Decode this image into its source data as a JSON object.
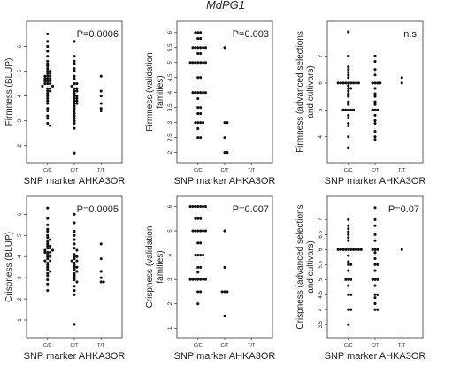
{
  "figure_title": "MdPG1",
  "chart_data": [
    {
      "type": "scatter",
      "xlabel": "SNP marker AHKA3OR",
      "ylabel": "Firmness (BLUP)",
      "annotation": "P=0.0006",
      "categories": [
        "C/C",
        "C/T",
        "T/T"
      ],
      "yticks": [
        2,
        3,
        4,
        5,
        6
      ],
      "ylim": [
        1.6,
        6.8
      ],
      "groups": [
        [
          6.5,
          6.2,
          6.0,
          5.8,
          5.6,
          5.4,
          5.3,
          5.2,
          5.1,
          5.0,
          5.0,
          4.9,
          4.9,
          4.8,
          4.8,
          4.8,
          4.7,
          4.7,
          4.7,
          4.6,
          4.6,
          4.6,
          4.5,
          4.5,
          4.5,
          4.4,
          4.4,
          4.3,
          4.3,
          4.2,
          4.2,
          4.1,
          4.0,
          3.9,
          3.8,
          3.7,
          3.5,
          3.4,
          3.2,
          3.1,
          2.9,
          2.8
        ],
        [
          6.2,
          5.6,
          5.4,
          5.3,
          5.1,
          5.0,
          4.8,
          4.7,
          4.5,
          4.5,
          4.4,
          4.3,
          4.3,
          4.2,
          4.2,
          4.1,
          4.0,
          4.0,
          3.9,
          3.9,
          3.8,
          3.8,
          3.7,
          3.7,
          3.6,
          3.5,
          3.4,
          3.3,
          3.2,
          3.1,
          3.0,
          2.9,
          2.7,
          1.7
        ],
        [
          4.8,
          4.2,
          4.0,
          3.7,
          3.5,
          3.4
        ]
      ]
    },
    {
      "type": "scatter",
      "xlabel": "SNP marker AHKA3OR",
      "ylabel": "Firmness (validation families)",
      "annotation": "P=0.003",
      "categories": [
        "C/C",
        "C/T",
        "T/T"
      ],
      "yticks": [
        2.0,
        2.5,
        3.0,
        3.5,
        4.0,
        4.5,
        5.0,
        5.5,
        6.0
      ],
      "ylim": [
        1.9,
        6.2
      ],
      "groups": [
        [
          6.0,
          6.0,
          6.0,
          5.8,
          5.8,
          5.5,
          5.5,
          5.5,
          5.5,
          5.5,
          5.5,
          5.3,
          5.3,
          5.0,
          5.0,
          5.0,
          5.0,
          5.0,
          5.0,
          5.0,
          4.5,
          4.5,
          4.0,
          4.0,
          4.0,
          4.0,
          4.0,
          4.0,
          3.8,
          3.5,
          3.5,
          3.3,
          3.3,
          3.0,
          3.0,
          3.0,
          3.0,
          2.8,
          2.5,
          2.5
        ],
        [
          5.5,
          3.0,
          3.0,
          2.5,
          2.0,
          2.0
        ],
        []
      ]
    },
    {
      "type": "scatter",
      "xlabel": "SNP marker AHKA3OR",
      "ylabel": "Firmness (advanced selections and cultivars)",
      "annotation": "n.s.",
      "categories": [
        "C/C",
        "C/T",
        "T/T"
      ],
      "yticks": [
        4,
        5,
        6,
        7
      ],
      "ylim": [
        3.3,
        8.1
      ],
      "groups": [
        [
          7.9,
          7.0,
          6.6,
          6.5,
          6.4,
          6.3,
          6.2,
          6.0,
          6.0,
          6.0,
          6.0,
          6.0,
          6.0,
          6.0,
          6.0,
          6.0,
          5.9,
          5.8,
          5.8,
          5.7,
          5.6,
          5.5,
          5.3,
          5.2,
          5.0,
          5.0,
          5.0,
          5.0,
          5.0,
          4.8,
          4.7,
          4.5,
          4.4,
          4.0,
          3.6
        ],
        [
          7.0,
          6.8,
          6.5,
          6.3,
          6.0,
          6.0,
          6.0,
          6.0,
          5.8,
          5.6,
          5.5,
          5.3,
          5.2,
          5.0,
          5.0,
          5.0,
          4.8,
          4.6,
          4.5,
          4.2,
          4.0,
          3.9
        ],
        [
          6.2,
          6.0
        ]
      ]
    },
    {
      "type": "scatter",
      "xlabel": "SNP marker AHKA3OR",
      "ylabel": "Crispness (BLUP)",
      "annotation": "P=0.0005",
      "categories": [
        "C/C",
        "C/T",
        "T/T"
      ],
      "yticks": [
        1,
        2,
        3,
        4,
        5,
        6
      ],
      "ylim": [
        0.5,
        6.6
      ],
      "groups": [
        [
          6.3,
          5.8,
          5.5,
          5.3,
          5.2,
          5.0,
          4.9,
          4.8,
          4.7,
          4.6,
          4.5,
          4.5,
          4.4,
          4.4,
          4.3,
          4.3,
          4.2,
          4.2,
          4.2,
          4.1,
          4.0,
          4.0,
          3.9,
          3.8,
          3.8,
          3.7,
          3.6,
          3.5,
          3.4,
          3.3,
          3.2,
          3.1,
          2.9,
          2.7,
          2.4
        ],
        [
          6.0,
          5.6,
          5.2,
          5.0,
          4.8,
          4.6,
          4.4,
          4.3,
          4.1,
          4.0,
          4.0,
          3.9,
          3.8,
          3.8,
          3.7,
          3.6,
          3.5,
          3.5,
          3.4,
          3.3,
          3.2,
          3.1,
          3.0,
          2.9,
          2.8,
          2.6,
          2.4,
          2.2,
          0.8
        ],
        [
          4.6,
          3.9,
          3.3,
          3.0,
          2.8,
          2.8
        ]
      ]
    },
    {
      "type": "scatter",
      "xlabel": "SNP marker AHKA3OR",
      "ylabel": "Crispness (validation families)",
      "annotation": "P=0.007",
      "categories": [
        "C/C",
        "C/T",
        "T/T"
      ],
      "yticks": [
        1,
        2,
        3,
        4,
        5,
        6
      ],
      "ylim": [
        0.9,
        6.2
      ],
      "groups": [
        [
          6.0,
          6.0,
          6.0,
          6.0,
          6.0,
          6.0,
          6.0,
          5.5,
          5.5,
          5.5,
          5.0,
          5.0,
          5.0,
          5.0,
          5.0,
          5.0,
          4.5,
          4.5,
          4.0,
          4.0,
          4.0,
          4.0,
          3.5,
          3.5,
          3.3,
          3.0,
          3.0,
          3.0,
          3.0,
          3.0,
          3.0,
          3.0,
          2.5,
          2.5,
          2.0
        ],
        [
          5.0,
          3.5,
          2.5,
          2.5,
          2.5,
          1.5
        ],
        []
      ]
    },
    {
      "type": "scatter",
      "xlabel": "SNP marker AHKA3OR",
      "ylabel": "Crispness (advanced selections and cultivars)",
      "annotation": "P=0.07",
      "categories": [
        "C/C",
        "C/T",
        "T/T"
      ],
      "yticks": [
        3.5,
        4.0,
        4.5,
        5.0,
        5.5,
        6.0,
        6.5,
        7.0
      ],
      "ylim": [
        3.3,
        7.6
      ],
      "groups": [
        [
          7.0,
          6.8,
          6.7,
          6.6,
          6.5,
          6.4,
          6.3,
          6.0,
          6.0,
          6.0,
          6.0,
          6.0,
          6.0,
          6.0,
          6.0,
          6.0,
          6.0,
          5.8,
          5.6,
          5.5,
          5.5,
          5.3,
          5.0,
          5.0,
          5.0,
          4.8,
          4.5,
          4.5,
          4.0,
          4.0,
          3.5
        ],
        [
          7.4,
          7.0,
          6.8,
          6.5,
          6.3,
          6.0,
          6.0,
          6.0,
          5.9,
          5.7,
          5.5,
          5.5,
          5.3,
          5.0,
          5.0,
          5.0,
          4.8,
          4.5,
          4.5,
          4.4,
          4.2,
          4.0,
          4.0
        ],
        [
          6.0
        ]
      ]
    }
  ]
}
